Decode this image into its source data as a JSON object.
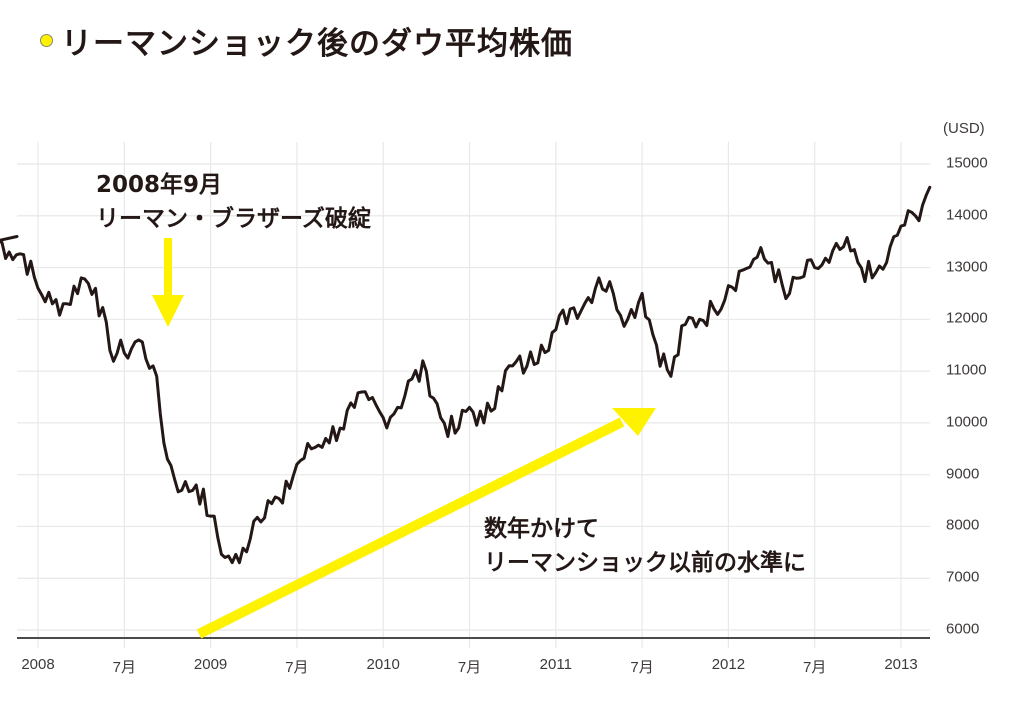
{
  "title": "リーマンショック後のダウ平均株価",
  "title_marker_color": "#fff200",
  "chart_data": {
    "type": "line",
    "title": "リーマンショック後のダウ平均株価",
    "xlabel": "",
    "ylabel": "(USD)",
    "y_unit": "(USD)",
    "ylim": [
      6000,
      15000
    ],
    "grid": true,
    "legend": "none",
    "y_ticks": [
      "15000",
      "14000",
      "13000",
      "12000",
      "11000",
      "10000",
      "9000",
      "8000",
      "7000",
      "6000"
    ],
    "x_ticks": [
      "2008",
      "7月",
      "2009",
      "7月",
      "2010",
      "7月",
      "2011",
      "7月",
      "2012",
      "7月",
      "2013"
    ],
    "line_color": "#231815",
    "series": [
      {
        "name": "ダウ平均株価",
        "x": [
          "2007-10",
          "2007-11",
          "2007-12",
          "2008-01",
          "2008-02",
          "2008-03",
          "2008-04",
          "2008-05",
          "2008-06",
          "2008-07",
          "2008-08",
          "2008-09",
          "2008-10",
          "2008-11",
          "2008-12",
          "2009-01",
          "2009-02",
          "2009-03",
          "2009-04",
          "2009-05",
          "2009-06",
          "2009-07",
          "2009-08",
          "2009-09",
          "2009-10",
          "2009-11",
          "2009-12",
          "2010-01",
          "2010-02",
          "2010-03",
          "2010-04",
          "2010-05",
          "2010-06",
          "2010-07",
          "2010-08",
          "2010-09",
          "2010-10",
          "2010-11",
          "2010-12",
          "2011-01",
          "2011-02",
          "2011-03",
          "2011-04",
          "2011-05",
          "2011-06",
          "2011-07",
          "2011-08",
          "2011-09",
          "2011-10",
          "2011-11",
          "2011-12",
          "2012-01",
          "2012-02",
          "2012-03",
          "2012-04",
          "2012-05",
          "2012-06",
          "2012-07",
          "2012-08",
          "2012-09",
          "2012-10",
          "2012-11",
          "2012-12",
          "2013-01",
          "2013-02",
          "2013-03"
        ],
        "values": [
          13600,
          13300,
          13250,
          12600,
          12300,
          12300,
          12800,
          12600,
          11400,
          11350,
          11600,
          11100,
          9300,
          8700,
          8800,
          8200,
          7400,
          7300,
          8100,
          8500,
          8450,
          9200,
          9500,
          9700,
          9900,
          10300,
          10450,
          10100,
          10300,
          10850,
          11000,
          10100,
          9800,
          10300,
          10000,
          10700,
          11100,
          11100,
          11500,
          11800,
          12200,
          12300,
          12800,
          12500,
          12000,
          12500,
          11500,
          10900,
          11900,
          12000,
          12200,
          12650,
          12950,
          13200,
          13100,
          12400,
          12800,
          13000,
          13100,
          13400,
          13100,
          12800,
          13100,
          13800,
          14000,
          14550
        ]
      }
    ],
    "annotations": [
      {
        "text": "2008年9月\nリーマン・ブラザーズ破綻",
        "arrow": "down",
        "arrow_color": "#fff200",
        "x": "2008-09"
      },
      {
        "text": "数年かけて\nリーマンショック以前の水準に",
        "arrow": "diagonal-up",
        "arrow_color": "#fff200",
        "from": "2008-12",
        "to": "2011-08"
      }
    ]
  },
  "axis": {
    "unit": "(USD)",
    "y_labels": [
      "15000",
      "14000",
      "13000",
      "12000",
      "11000",
      "10000",
      "9000",
      "8000",
      "7000",
      "6000"
    ],
    "x_labels": [
      "2008",
      "7月",
      "2009",
      "7月",
      "2010",
      "7月",
      "2011",
      "7月",
      "2012",
      "7月",
      "2013"
    ]
  },
  "annotations": {
    "lehman": {
      "line1": "2008年9月",
      "line2": "リーマン・ブラザーズ破綻"
    },
    "recovery": {
      "line1": "数年かけて",
      "line2": "リーマンショック以前の水準に"
    }
  },
  "colors": {
    "line": "#231815",
    "arrow": "#fff200",
    "grid": "#e8e8e8",
    "baseline": "#4a4a4a",
    "text": "#231815"
  }
}
